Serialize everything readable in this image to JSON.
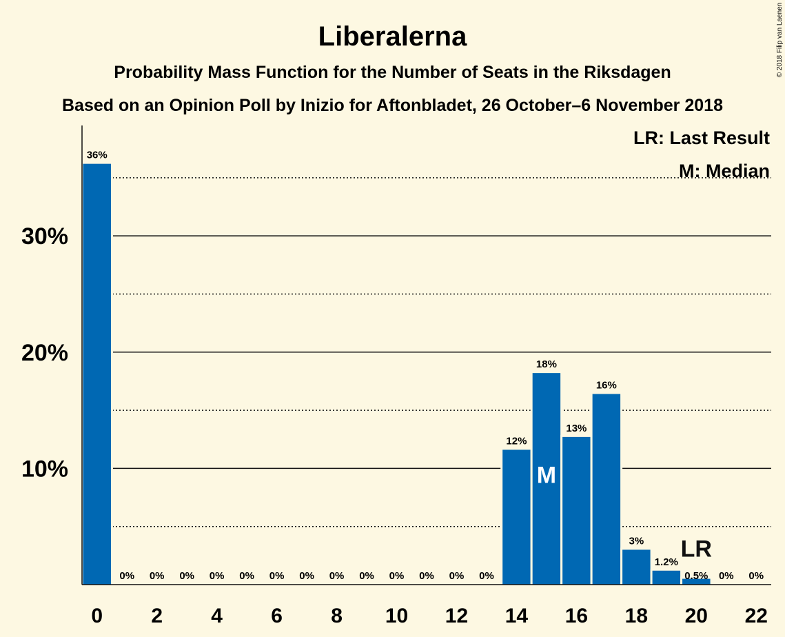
{
  "title": "Liberalerna",
  "subtitle1": "Probability Mass Function for the Number of Seats in the Riksdagen",
  "subtitle2": "Based on an Opinion Poll by Inizio for Aftonbladet, 26 October–6 November 2018",
  "copyright": "© 2018 Filip van Laenen",
  "legend": {
    "last_result": "LR: Last Result",
    "median": "M: Median"
  },
  "colors": {
    "background": "#fdf8e2",
    "bar": "#0068b3",
    "text": "#111111"
  },
  "chart_data": {
    "type": "bar",
    "title": "Liberalerna",
    "xlabel": "",
    "ylabel": "",
    "x": [
      0,
      1,
      2,
      3,
      4,
      5,
      6,
      7,
      8,
      9,
      10,
      11,
      12,
      13,
      14,
      15,
      16,
      17,
      18,
      19,
      20,
      21,
      22
    ],
    "values": [
      36.2,
      0,
      0,
      0,
      0,
      0,
      0,
      0,
      0,
      0,
      0,
      0,
      0,
      0,
      11.6,
      18.2,
      12.7,
      16.4,
      3.0,
      1.2,
      0.5,
      0,
      0
    ],
    "data_labels": [
      "36%",
      "0%",
      "0%",
      "0%",
      "0%",
      "0%",
      "0%",
      "0%",
      "0%",
      "0%",
      "0%",
      "0%",
      "0%",
      "0%",
      "12%",
      "18%",
      "13%",
      "16%",
      "3%",
      "1.2%",
      "0.5%",
      "0%",
      "0%"
    ],
    "x_tick_labels": [
      "0",
      "2",
      "4",
      "6",
      "8",
      "10",
      "12",
      "14",
      "16",
      "18",
      "20",
      "22"
    ],
    "x_tick_values": [
      0,
      2,
      4,
      6,
      8,
      10,
      12,
      14,
      16,
      18,
      20,
      22
    ],
    "y_tick_labels": [
      "10%",
      "20%",
      "30%"
    ],
    "y_tick_values": [
      10,
      20,
      30
    ],
    "ylim": [
      0,
      39.5
    ],
    "xlim": [
      -0.5,
      22.5
    ],
    "gridlines_solid": [
      10,
      20,
      30
    ],
    "gridlines_dotted": [
      5,
      15,
      25,
      35
    ],
    "median": {
      "seat": 15,
      "label": "M"
    },
    "last_result": {
      "seat": 20,
      "label": "LR"
    },
    "legend_position": "top-right"
  }
}
